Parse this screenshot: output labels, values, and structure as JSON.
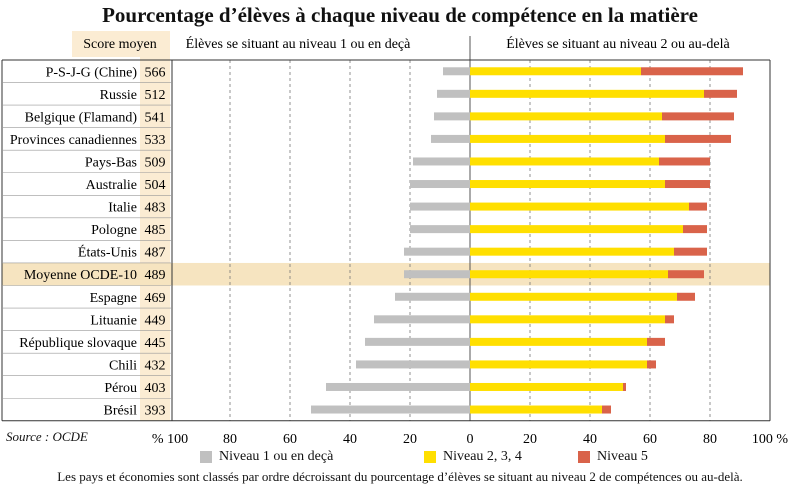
{
  "title": "Pourcentage d’élèves à chaque niveau de compétence en la matière",
  "source": "Source : OCDE",
  "footnote": "Les pays et économies sont classés par ordre décroissant du pourcentage d’élèves se situant au niveau 2 de compétences ou au-delà.",
  "colors": {
    "low": "#c0c0c0",
    "mid": "#ffdf00",
    "high": "#d9634a",
    "highlight": "#f6e4c0",
    "scorebg": "#fbecd3"
  },
  "chart_data": {
    "type": "bar",
    "orientation": "horizontal-diverging-stacked",
    "score_header": "Score moyen",
    "left_header": "Élèves se situant au niveau 1 ou en deçà",
    "right_header": "Élèves se situant au niveau 2 ou au-delà",
    "categories": [
      "P-S-J-G (Chine)",
      "Russie",
      "Belgique (Flamand)",
      "Provinces canadiennes",
      "Pays-Bas",
      "Australie",
      "Italie",
      "Pologne",
      "États-Unis",
      "Moyenne OCDE-10",
      "Espagne",
      "Lituanie",
      "République slovaque",
      "Chili",
      "Pérou",
      "Brésil"
    ],
    "scores": [
      "566",
      "512",
      "541",
      "533",
      "509",
      "504",
      "483",
      "485",
      "487",
      "489",
      "469",
      "449",
      "445",
      "432",
      "403",
      "393"
    ],
    "highlight_category": "Moyenne OCDE-10",
    "series": [
      {
        "name": "Niveau 1 ou en deçà",
        "color": "#c0c0c0",
        "values": [
          9,
          11,
          12,
          13,
          19,
          20,
          20,
          20,
          22,
          22,
          25,
          32,
          35,
          38,
          48,
          53
        ]
      },
      {
        "name": "Niveau 2, 3, 4",
        "color": "#ffdf00",
        "values": [
          57,
          78,
          64,
          65,
          63,
          65,
          73,
          71,
          68,
          66,
          69,
          65,
          59,
          59,
          51,
          44
        ]
      },
      {
        "name": "Niveau 5",
        "color": "#d9634a",
        "values": [
          34,
          11,
          24,
          22,
          17,
          15,
          6,
          8,
          11,
          12,
          6,
          3,
          6,
          3,
          1,
          3
        ]
      }
    ],
    "xlim": [
      -100,
      100
    ],
    "xticks": [
      "% 100",
      "80",
      "60",
      "40",
      "20",
      "0",
      "20",
      "40",
      "60",
      "80",
      "100 %"
    ],
    "xlabel": "",
    "ylabel": ""
  }
}
